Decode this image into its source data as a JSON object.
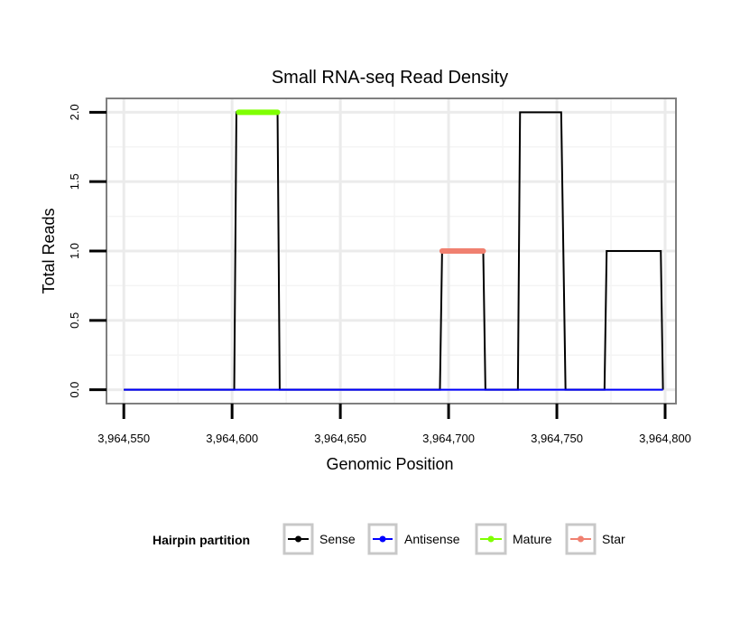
{
  "chart_data": {
    "type": "line",
    "title": "Small RNA-seq Read Density",
    "xlabel": "Genomic Position",
    "ylabel": "Total Reads",
    "xlim": [
      3964542,
      3964805
    ],
    "ylim": [
      -0.1,
      2.1
    ],
    "x_ticks": [
      3964550,
      3964600,
      3964650,
      3964700,
      3964750,
      3964800
    ],
    "x_tick_labels": [
      "3,964,550",
      "3,964,600",
      "3,964,650",
      "3,964,700",
      "3,964,750",
      "3,964,800"
    ],
    "y_ticks": [
      0,
      0.5,
      1,
      1.5,
      2
    ],
    "y_tick_labels": [
      "0.0",
      "0.5",
      "1.0",
      "1.5",
      "2.0"
    ],
    "grid": true,
    "legend": {
      "title": "Hairpin partition",
      "position": "bottom",
      "entries": [
        {
          "label": "Sense",
          "color": "#000000"
        },
        {
          "label": "Antisense",
          "color": "#0000ff"
        },
        {
          "label": "Mature",
          "color": "#7fff00"
        },
        {
          "label": "Star",
          "color": "#f08070"
        }
      ]
    },
    "series": [
      {
        "name": "Sense",
        "color": "#000000",
        "x": [
          3964550,
          3964601,
          3964602,
          3964621,
          3964622,
          3964696,
          3964697,
          3964716,
          3964717,
          3964732,
          3964733,
          3964752,
          3964753,
          3964754,
          3964772,
          3964773,
          3964798,
          3964799
        ],
        "y": [
          0,
          0,
          2,
          2,
          0,
          0,
          1,
          1,
          0,
          0,
          2,
          2,
          1,
          0,
          0,
          1,
          1,
          0
        ]
      },
      {
        "name": "Antisense",
        "color": "#0000ff",
        "x": [
          3964550,
          3964799
        ],
        "y": [
          0,
          0
        ]
      },
      {
        "name": "Mature",
        "color": "#7fff00",
        "x": [
          3964603,
          3964621
        ],
        "y": [
          2,
          2
        ]
      },
      {
        "name": "Star",
        "color": "#f08070",
        "x": [
          3964697,
          3964716
        ],
        "y": [
          1,
          1
        ]
      }
    ]
  }
}
